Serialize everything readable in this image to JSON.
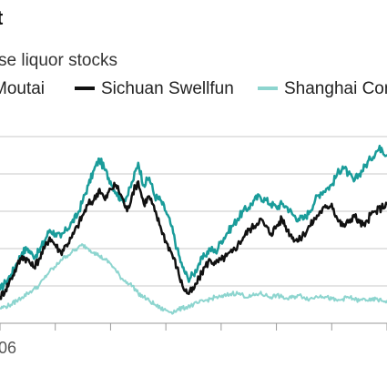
{
  "chart_data": {
    "type": "line",
    "title": "t",
    "subtitle": "se liquor stocks",
    "xlabel": "",
    "ylabel": "",
    "grid": true,
    "legend_placement": "top",
    "x_tick_labels": [
      "06"
    ],
    "x": [
      0,
      1,
      2,
      3,
      4,
      5,
      6,
      7,
      8,
      9,
      10,
      11,
      12,
      13,
      14,
      15,
      16,
      17,
      18,
      19,
      20,
      21,
      22,
      23,
      24,
      25,
      26,
      27,
      28,
      29,
      30,
      31,
      32,
      33,
      34,
      35,
      36,
      37,
      38,
      39,
      40,
      41,
      42,
      43,
      44,
      45,
      46,
      47,
      48,
      49,
      50,
      51,
      52,
      53,
      54,
      55,
      56,
      57,
      58,
      59,
      60,
      61,
      62,
      63,
      64,
      65,
      66,
      67,
      68,
      69,
      70
    ],
    "ylim": [
      0,
      5
    ],
    "series": [
      {
        "name": "Moutai",
        "color": "#1a9c9a",
        "stroke_width": 2.5,
        "values": [
          0.9,
          1.1,
          1.3,
          1.6,
          1.9,
          2.0,
          1.8,
          1.9,
          2.2,
          2.5,
          2.4,
          2.3,
          2.5,
          2.7,
          2.9,
          3.3,
          3.7,
          4.1,
          4.4,
          4.1,
          3.8,
          3.5,
          3.3,
          3.4,
          3.8,
          4.3,
          3.7,
          3.9,
          3.4,
          3.3,
          3.0,
          2.6,
          2.0,
          1.5,
          1.2,
          1.3,
          1.6,
          1.8,
          2.0,
          1.9,
          2.2,
          2.4,
          2.6,
          2.8,
          3.0,
          3.1,
          3.3,
          3.4,
          3.3,
          3.2,
          3.1,
          3.2,
          3.1,
          2.9,
          2.8,
          2.8,
          3.0,
          3.3,
          3.5,
          3.6,
          3.7,
          4.0,
          4.2,
          4.0,
          3.8,
          4.0,
          4.2,
          4.4,
          4.6,
          4.7,
          4.5
        ]
      },
      {
        "name": "Sichuan Swellfun",
        "color": "#111111",
        "stroke_width": 2.5,
        "values": [
          0.7,
          0.9,
          1.2,
          1.5,
          1.8,
          1.7,
          1.5,
          1.7,
          2.0,
          2.3,
          2.1,
          1.9,
          2.1,
          2.3,
          2.6,
          2.9,
          3.2,
          3.3,
          3.6,
          3.3,
          3.6,
          3.7,
          3.4,
          3.0,
          3.5,
          3.8,
          3.2,
          3.4,
          3.0,
          2.6,
          2.2,
          1.9,
          1.5,
          1.0,
          0.8,
          0.9,
          1.2,
          1.5,
          1.7,
          1.6,
          1.7,
          1.8,
          1.9,
          2.1,
          2.3,
          2.5,
          2.6,
          2.8,
          2.6,
          2.4,
          2.6,
          2.8,
          2.5,
          2.3,
          2.2,
          2.4,
          2.6,
          2.8,
          3.0,
          3.1,
          3.2,
          2.8,
          2.6,
          2.7,
          2.9,
          2.7,
          2.6,
          2.9,
          3.0,
          3.1,
          3.2
        ]
      },
      {
        "name": "Shanghai Com",
        "color": "#8dd5cf",
        "stroke_width": 2,
        "values": [
          0.4,
          0.45,
          0.5,
          0.6,
          0.7,
          0.8,
          0.9,
          1.0,
          1.2,
          1.4,
          1.5,
          1.7,
          1.8,
          1.9,
          2.0,
          2.1,
          2.0,
          1.9,
          1.8,
          1.7,
          1.6,
          1.4,
          1.2,
          1.1,
          1.0,
          0.8,
          0.7,
          0.6,
          0.5,
          0.4,
          0.35,
          0.3,
          0.35,
          0.4,
          0.45,
          0.5,
          0.55,
          0.6,
          0.65,
          0.7,
          0.7,
          0.75,
          0.8,
          0.8,
          0.75,
          0.7,
          0.75,
          0.8,
          0.75,
          0.7,
          0.75,
          0.7,
          0.65,
          0.7,
          0.75,
          0.7,
          0.65,
          0.7,
          0.75,
          0.7,
          0.65,
          0.6,
          0.65,
          0.7,
          0.65,
          0.6,
          0.65,
          0.6,
          0.65,
          0.6,
          0.6
        ]
      }
    ]
  }
}
